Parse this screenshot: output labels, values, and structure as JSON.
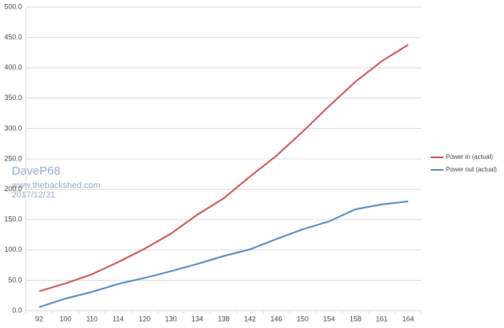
{
  "chart_data": {
    "type": "line",
    "categories": [
      "92",
      "100",
      "110",
      "114",
      "120",
      "130",
      "134",
      "138",
      "142",
      "146",
      "150",
      "154",
      "158",
      "161",
      "164"
    ],
    "series": [
      {
        "name": "Power in (actual)",
        "color": "#c0504d",
        "values": [
          32,
          45,
          60,
          80,
          102,
          127,
          158,
          185,
          221,
          255,
          295,
          337,
          377,
          411,
          438
        ]
      },
      {
        "name": "Power out (actual)",
        "color": "#4f81bd",
        "values": [
          6,
          20,
          31,
          44,
          54,
          65,
          77,
          90,
          101,
          118,
          134,
          147,
          167,
          175,
          180
        ]
      }
    ],
    "ylim": [
      0,
      500
    ],
    "yticks": [
      {
        "value": 0,
        "label": "0.0"
      },
      {
        "value": 50,
        "label": "50.0"
      },
      {
        "value": 100,
        "label": "100.0"
      },
      {
        "value": 150,
        "label": "150.0"
      },
      {
        "value": 200,
        "label": "200.0"
      },
      {
        "value": 250,
        "label": "250.0"
      },
      {
        "value": 300,
        "label": "300.0"
      },
      {
        "value": 350,
        "label": "350.0"
      },
      {
        "value": 400,
        "label": "400.0"
      },
      {
        "value": 450,
        "label": "450.0"
      },
      {
        "value": 500,
        "label": "500.0"
      }
    ],
    "grid": true,
    "legend": "right",
    "annotations": [
      "DaveP68",
      "www.thebackshed.com",
      "2017/12/31"
    ]
  }
}
